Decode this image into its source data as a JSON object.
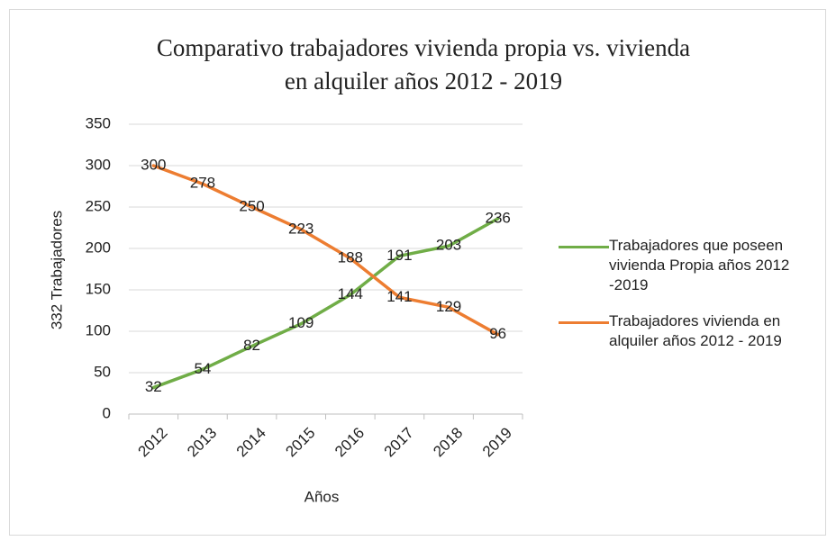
{
  "chart_data": {
    "type": "line",
    "title": [
      "Comparativo trabajadores vivienda propia vs. vivienda",
      "en alquiler años 2012 - 2019"
    ],
    "xlabel": "Años",
    "ylabel": "332 Trabajadores",
    "categories": [
      "2012",
      "2013",
      "2014",
      "2015",
      "2016",
      "2017",
      "2018",
      "2019"
    ],
    "series": [
      {
        "name": "Trabajadores que poseen vivienda Propia años 2012 -2019",
        "color": "#70ad47",
        "values": [
          32,
          54,
          82,
          109,
          144,
          191,
          203,
          236
        ]
      },
      {
        "name": "Trabajadores vivienda en alquiler años 2012 - 2019",
        "color": "#ed7d31",
        "values": [
          300,
          278,
          250,
          223,
          188,
          141,
          129,
          96
        ]
      }
    ],
    "ylim": [
      0,
      350
    ],
    "yticks": [
      0,
      50,
      100,
      150,
      200,
      250,
      300,
      350
    ],
    "grid": true,
    "legend": "right"
  }
}
